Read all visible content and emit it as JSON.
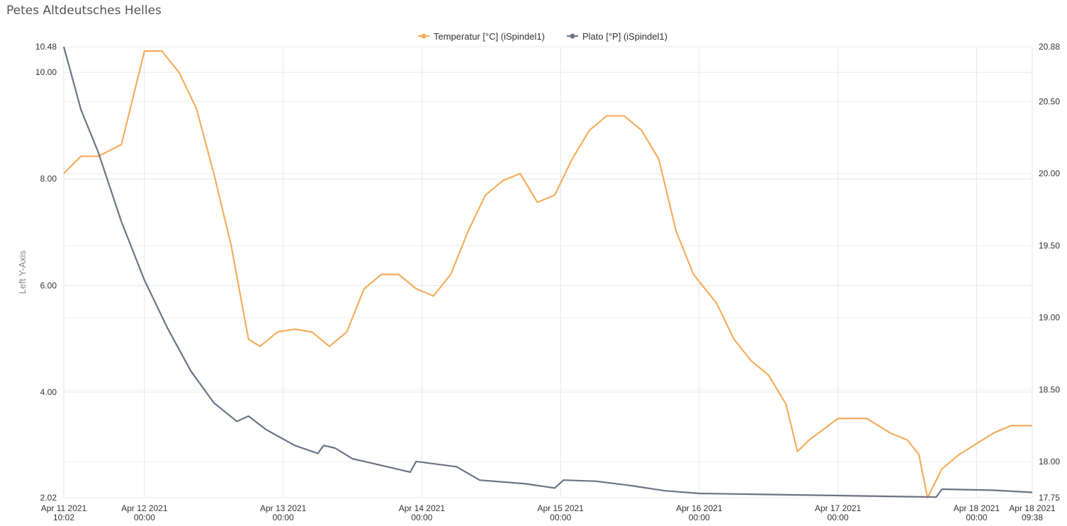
{
  "page": {
    "title": "Petes Altdeutsches Helles"
  },
  "chart_data": {
    "type": "line",
    "legend_position": "top-center",
    "grid": true,
    "x_range": [
      "2021-04-11 10:02",
      "2021-04-18 09:38"
    ],
    "x_ticks": [
      {
        "date": "Apr 11 2021",
        "time": "10:02",
        "t": "2021-04-11 10:02"
      },
      {
        "date": "Apr 12 2021",
        "time": "00:00",
        "t": "2021-04-12 00:00"
      },
      {
        "date": "Apr 13 2021",
        "time": "00:00",
        "t": "2021-04-13 00:00"
      },
      {
        "date": "Apr 14 2021",
        "time": "00:00",
        "t": "2021-04-14 00:00"
      },
      {
        "date": "Apr 15 2021",
        "time": "00:00",
        "t": "2021-04-15 00:00"
      },
      {
        "date": "Apr 16 2021",
        "time": "00:00",
        "t": "2021-04-16 00:00"
      },
      {
        "date": "Apr 17 2021",
        "time": "00:00",
        "t": "2021-04-17 00:00"
      },
      {
        "date": "Apr 18 2021",
        "time": "00:00",
        "t": "2021-04-18 00:00"
      },
      {
        "date": "Apr 18 2021",
        "time": "09:38",
        "t": "2021-04-18 09:38"
      }
    ],
    "y_left": {
      "label": "Left Y-Axis",
      "range": [
        2.02,
        10.48
      ],
      "ticks": [
        {
          "v": 2.02,
          "label": "2.02"
        },
        {
          "v": 4,
          "label": "4.00"
        },
        {
          "v": 6,
          "label": "6.00"
        },
        {
          "v": 8,
          "label": "8.00"
        },
        {
          "v": 10,
          "label": "10.00"
        },
        {
          "v": 10.48,
          "label": "10.48"
        }
      ]
    },
    "y_right": {
      "range": [
        17.75,
        20.88
      ],
      "ticks": [
        {
          "v": 17.75,
          "label": "17.75"
        },
        {
          "v": 18,
          "label": "18.00"
        },
        {
          "v": 18.5,
          "label": "18.50"
        },
        {
          "v": 19,
          "label": "19.00"
        },
        {
          "v": 19.5,
          "label": "19.50"
        },
        {
          "v": 20,
          "label": "20.00"
        },
        {
          "v": 20.5,
          "label": "20.50"
        },
        {
          "v": 20.88,
          "label": "20.88"
        }
      ]
    },
    "series": [
      {
        "name": "Temperatur [°C] (iSpindel1)",
        "axis": "right",
        "color": "#f5ad5c",
        "points": [
          [
            "2021-04-11 10:02",
            20.0
          ],
          [
            "2021-04-11 13:00",
            20.12
          ],
          [
            "2021-04-11 16:00",
            20.12
          ],
          [
            "2021-04-11 20:00",
            20.2
          ],
          [
            "2021-04-12 00:00",
            20.85
          ],
          [
            "2021-04-12 03:00",
            20.85
          ],
          [
            "2021-04-12 06:00",
            20.7
          ],
          [
            "2021-04-12 09:00",
            20.45
          ],
          [
            "2021-04-12 12:00",
            20.0
          ],
          [
            "2021-04-12 15:00",
            19.5
          ],
          [
            "2021-04-12 18:00",
            18.85
          ],
          [
            "2021-04-12 20:00",
            18.8
          ],
          [
            "2021-04-12 23:00",
            18.9
          ],
          [
            "2021-04-13 02:00",
            18.92
          ],
          [
            "2021-04-13 05:00",
            18.9
          ],
          [
            "2021-04-13 08:00",
            18.8
          ],
          [
            "2021-04-13 11:00",
            18.9
          ],
          [
            "2021-04-13 14:00",
            19.2
          ],
          [
            "2021-04-13 17:00",
            19.3
          ],
          [
            "2021-04-13 20:00",
            19.3
          ],
          [
            "2021-04-13 23:00",
            19.2
          ],
          [
            "2021-04-14 02:00",
            19.15
          ],
          [
            "2021-04-14 05:00",
            19.3
          ],
          [
            "2021-04-14 08:00",
            19.6
          ],
          [
            "2021-04-14 11:00",
            19.85
          ],
          [
            "2021-04-14 14:00",
            19.95
          ],
          [
            "2021-04-14 17:00",
            20.0
          ],
          [
            "2021-04-14 20:00",
            19.8
          ],
          [
            "2021-04-14 23:00",
            19.85
          ],
          [
            "2021-04-15 02:00",
            20.1
          ],
          [
            "2021-04-15 05:00",
            20.3
          ],
          [
            "2021-04-15 08:00",
            20.4
          ],
          [
            "2021-04-15 11:00",
            20.4
          ],
          [
            "2021-04-15 14:00",
            20.3
          ],
          [
            "2021-04-15 17:00",
            20.1
          ],
          [
            "2021-04-15 20:00",
            19.6
          ],
          [
            "2021-04-15 23:00",
            19.3
          ],
          [
            "2021-04-16 03:00",
            19.1
          ],
          [
            "2021-04-16 06:00",
            18.85
          ],
          [
            "2021-04-16 09:00",
            18.7
          ],
          [
            "2021-04-16 12:00",
            18.6
          ],
          [
            "2021-04-16 15:00",
            18.4
          ],
          [
            "2021-04-16 17:00",
            18.07
          ],
          [
            "2021-04-16 19:00",
            18.15
          ],
          [
            "2021-04-17 00:00",
            18.3
          ],
          [
            "2021-04-17 05:00",
            18.3
          ],
          [
            "2021-04-17 09:00",
            18.2
          ],
          [
            "2021-04-17 12:00",
            18.15
          ],
          [
            "2021-04-17 14:00",
            18.05
          ],
          [
            "2021-04-17 15:30",
            17.75
          ],
          [
            "2021-04-17 18:00",
            17.95
          ],
          [
            "2021-04-17 21:00",
            18.05
          ],
          [
            "2021-04-18 03:00",
            18.2
          ],
          [
            "2021-04-18 06:00",
            18.25
          ],
          [
            "2021-04-18 09:38",
            18.25
          ]
        ]
      },
      {
        "name": "Plato [°P] (iSpindel1)",
        "axis": "left",
        "color": "#6b7385",
        "points": [
          [
            "2021-04-11 10:02",
            10.48
          ],
          [
            "2021-04-11 11:00",
            10.1
          ],
          [
            "2021-04-11 13:00",
            9.3
          ],
          [
            "2021-04-11 16:00",
            8.5
          ],
          [
            "2021-04-11 20:00",
            7.2
          ],
          [
            "2021-04-12 00:00",
            6.1
          ],
          [
            "2021-04-12 04:00",
            5.2
          ],
          [
            "2021-04-12 08:00",
            4.4
          ],
          [
            "2021-04-12 12:00",
            3.8
          ],
          [
            "2021-04-12 16:00",
            3.45
          ],
          [
            "2021-04-12 18:00",
            3.55
          ],
          [
            "2021-04-12 21:00",
            3.3
          ],
          [
            "2021-04-13 02:00",
            3.0
          ],
          [
            "2021-04-13 06:00",
            2.85
          ],
          [
            "2021-04-13 07:00",
            3.0
          ],
          [
            "2021-04-13 09:00",
            2.95
          ],
          [
            "2021-04-13 12:00",
            2.75
          ],
          [
            "2021-04-13 18:00",
            2.6
          ],
          [
            "2021-04-13 22:00",
            2.5
          ],
          [
            "2021-04-13 23:00",
            2.7
          ],
          [
            "2021-04-14 06:00",
            2.6
          ],
          [
            "2021-04-14 10:00",
            2.35
          ],
          [
            "2021-04-14 18:00",
            2.28
          ],
          [
            "2021-04-14 23:00",
            2.2
          ],
          [
            "2021-04-15 00:30",
            2.35
          ],
          [
            "2021-04-15 06:00",
            2.33
          ],
          [
            "2021-04-15 12:00",
            2.25
          ],
          [
            "2021-04-15 18:00",
            2.15
          ],
          [
            "2021-04-16 00:00",
            2.1
          ],
          [
            "2021-04-16 12:00",
            2.08
          ],
          [
            "2021-04-17 00:00",
            2.06
          ],
          [
            "2021-04-17 12:00",
            2.04
          ],
          [
            "2021-04-17 17:00",
            2.03
          ],
          [
            "2021-04-17 18:00",
            2.18
          ],
          [
            "2021-04-18 03:00",
            2.16
          ],
          [
            "2021-04-18 09:38",
            2.12
          ]
        ]
      }
    ]
  }
}
